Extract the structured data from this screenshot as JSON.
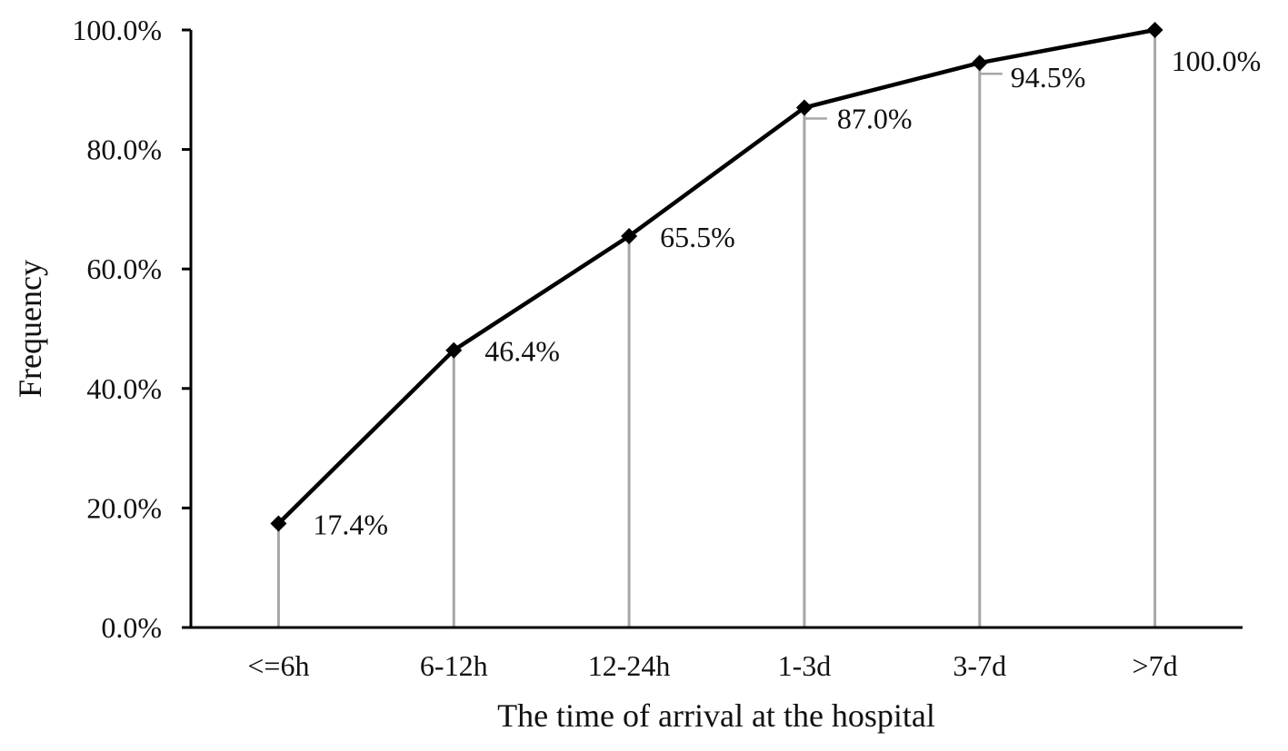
{
  "chart_data": {
    "type": "line",
    "xlabel": "The time of arrival at the hospital",
    "ylabel": "Frequency",
    "categories": [
      "<=6h",
      "6-12h",
      "12-24h",
      "1-3d",
      "3-7d",
      ">7d"
    ],
    "series": [
      {
        "values": [
          17.4,
          46.4,
          65.5,
          87.0,
          94.5,
          100.0
        ]
      }
    ],
    "data_labels": [
      "17.4%",
      "46.4%",
      "65.5%",
      "87.0%",
      "94.5%",
      "100.0%"
    ],
    "ylim": [
      0,
      100
    ],
    "yticks": [
      0,
      20,
      40,
      60,
      80,
      100
    ],
    "ytick_labels": [
      "0.0%",
      "20.0%",
      "40.0%",
      "60.0%",
      "80.0%",
      "100.0%"
    ],
    "grid": false,
    "drop_lines": true,
    "marker": "diamond",
    "colors": {
      "line": "#000000",
      "drop_line": "#a6a6a6",
      "axis": "#000000"
    }
  }
}
